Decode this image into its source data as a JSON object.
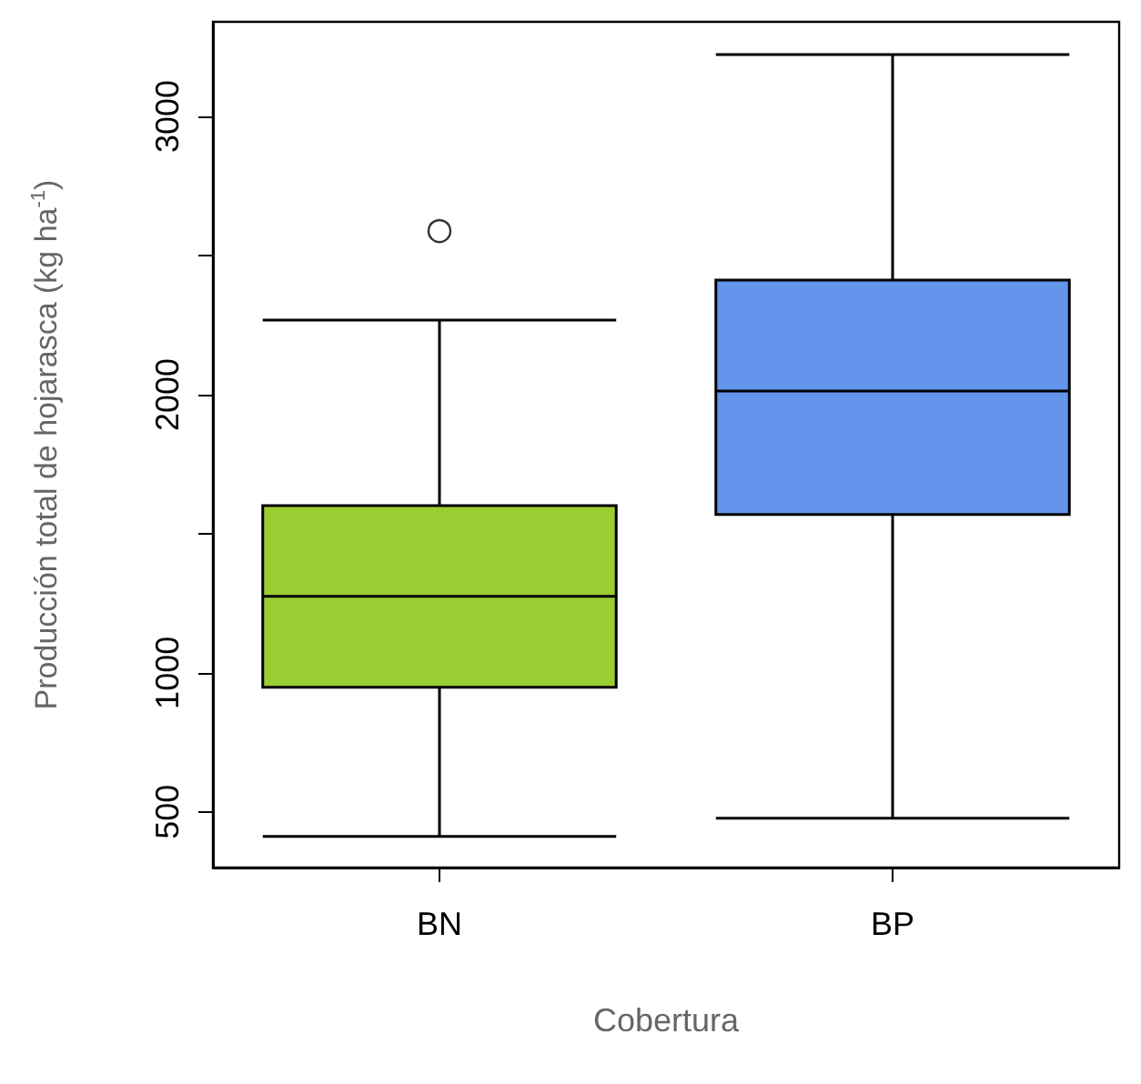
{
  "chart_data": {
    "type": "box",
    "xlabel": "Cobertura",
    "ylabel": "Producción total de hojarasca (kg ha$^{-1}$)",
    "categories": [
      "BN",
      "BP"
    ],
    "colors": [
      "#9acd32",
      "#6495ed"
    ],
    "boxes": [
      {
        "low": 412,
        "q1": 948,
        "median": 1275,
        "q3": 1601,
        "high": 2268,
        "outliers": [
          2588
        ]
      },
      {
        "low": 477,
        "q1": 1569,
        "median": 2013,
        "q3": 2412,
        "high": 3222
      }
    ],
    "ylim": [
      300,
      3340
    ],
    "yticks": [
      500,
      1000,
      {
        "value": 1500,
        "label": null
      },
      2000,
      {
        "value": 2500,
        "label": null
      },
      3000
    ],
    "grid": false
  }
}
